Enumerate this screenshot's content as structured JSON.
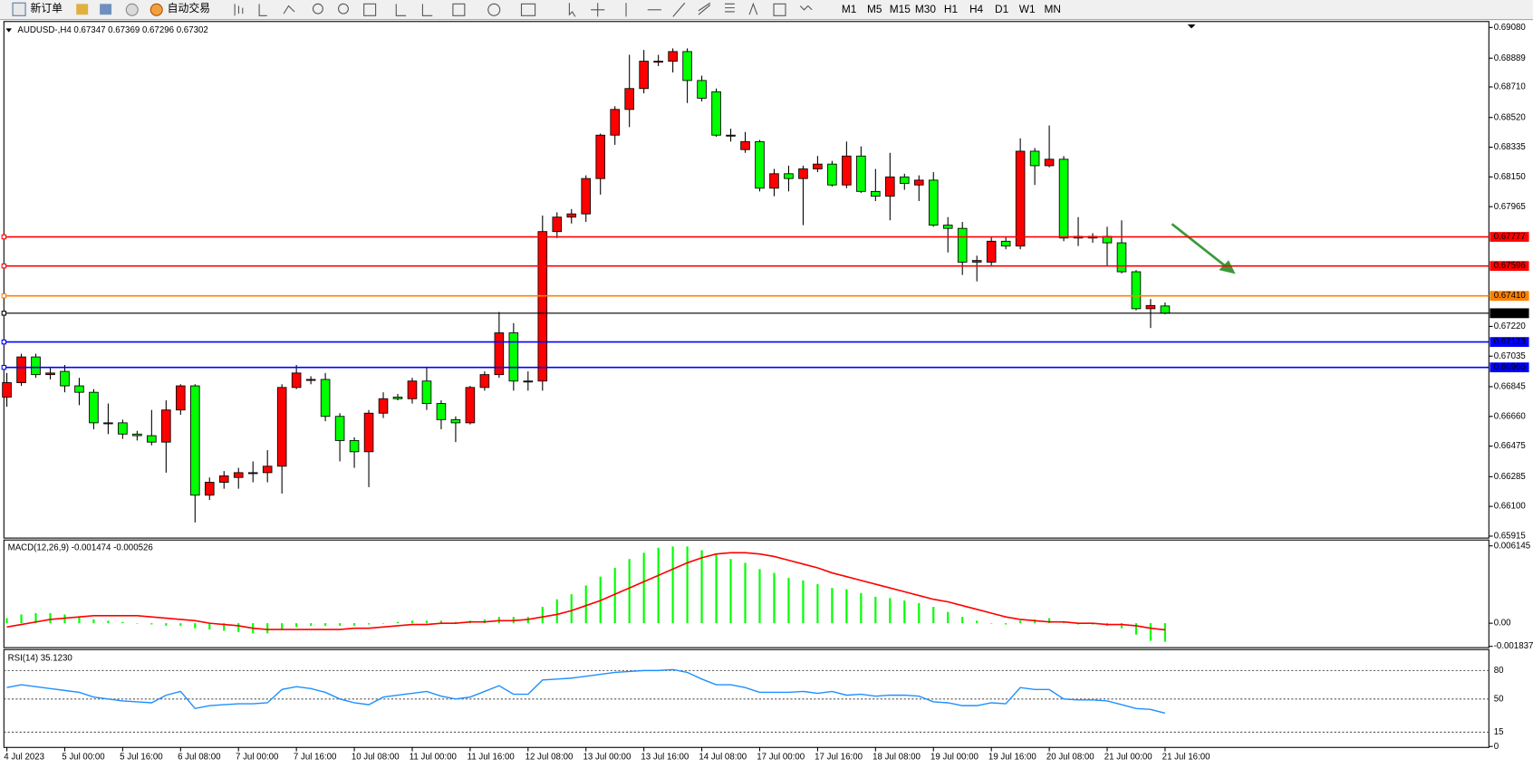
{
  "toolbar": {
    "buttons": [
      "新订单",
      "自动交易"
    ],
    "timeframes": [
      "M1",
      "M5",
      "M15",
      "M30",
      "H1",
      "H4",
      "D1",
      "W1",
      "MN"
    ]
  },
  "chart_data": [
    {
      "type": "candlestick",
      "title": "AUDUSD-,H4  0.67347 0.67369 0.67296 0.67302",
      "up_color": "#ff0000",
      "down_color": "#00ff00",
      "categories": [
        "4 Jul 2023",
        null,
        null,
        null,
        "5 Jul 00:00",
        null,
        null,
        null,
        "5 Jul 16:00",
        null,
        null,
        null,
        "6 Jul 08:00",
        null,
        null,
        null,
        "7 Jul 00:00",
        null,
        null,
        null,
        "7 Jul 16:00",
        null,
        null,
        null,
        "10 Jul 08:00",
        null,
        null,
        null,
        "11 Jul 00:00",
        null,
        null,
        null,
        "11 Jul 16:00",
        null,
        null,
        null,
        "12 Jul 08:00",
        null,
        null,
        null,
        "13 Jul 00:00",
        null,
        null,
        null,
        "13 Jul 16:00",
        null,
        null,
        null,
        "14 Jul 08:00",
        null,
        null,
        null,
        "17 Jul 00:00",
        null,
        null,
        null,
        "17 Jul 16:00",
        null,
        null,
        null,
        "18 Jul 08:00",
        null,
        null,
        null,
        "19 Jul 00:00",
        null,
        null,
        null,
        "19 Jul 16:00",
        null,
        null,
        null,
        "20 Jul 08:00",
        null,
        null,
        null,
        "21 Jul 00:00",
        null,
        null,
        null,
        "21 Jul 16:00"
      ],
      "open": [
        0.6678,
        0.6687,
        0.6703,
        0.6692,
        0.6694,
        0.6685,
        0.6681,
        0.6662,
        0.6662,
        0.6655,
        0.6654,
        0.665,
        0.667,
        0.6685,
        0.6617,
        0.6625,
        0.6628,
        0.6631,
        0.6631,
        0.6635,
        0.6684,
        0.6689,
        0.6689,
        0.6666,
        0.6651,
        0.6644,
        0.6668,
        0.6678,
        0.6677,
        0.6688,
        0.6674,
        0.6664,
        0.6662,
        0.6684,
        0.6692,
        0.6718,
        0.6688,
        0.6688,
        0.6781,
        0.679,
        0.6792,
        0.6814,
        0.6841,
        0.6857,
        0.687,
        0.6887,
        0.6887,
        0.6893,
        0.6875,
        0.6868,
        0.6841,
        0.6832,
        0.6837,
        0.6808,
        0.6817,
        0.6814,
        0.682,
        0.6823,
        0.681,
        0.6828,
        0.6806,
        0.6803,
        0.6815,
        0.681,
        0.6813,
        0.6785,
        0.6783,
        0.6762,
        0.6762,
        0.6775,
        0.6772,
        0.6831,
        0.6822,
        0.6826,
        0.6778,
        0.6778,
        0.6778,
        0.6774,
        0.6756,
        0.6733,
        0.67347
      ],
      "high": [
        0.6693,
        0.6705,
        0.6705,
        0.6696,
        0.6698,
        0.669,
        0.6683,
        0.6674,
        0.6664,
        0.6657,
        0.667,
        0.6676,
        0.6686,
        0.6686,
        0.6628,
        0.6632,
        0.6634,
        0.6638,
        0.6645,
        0.6686,
        0.6698,
        0.6691,
        0.6693,
        0.6668,
        0.6653,
        0.667,
        0.6681,
        0.668,
        0.669,
        0.6696,
        0.6676,
        0.6666,
        0.6685,
        0.6694,
        0.6731,
        0.6724,
        0.6694,
        0.6791,
        0.6793,
        0.6795,
        0.6816,
        0.6842,
        0.6859,
        0.6891,
        0.6894,
        0.6891,
        0.6895,
        0.6895,
        0.6878,
        0.687,
        0.6845,
        0.6843,
        0.6838,
        0.682,
        0.6822,
        0.6822,
        0.6828,
        0.6825,
        0.6837,
        0.6834,
        0.682,
        0.683,
        0.6817,
        0.6816,
        0.6818,
        0.679,
        0.6787,
        0.6766,
        0.6778,
        0.6778,
        0.6839,
        0.6833,
        0.6847,
        0.6828,
        0.679,
        0.678,
        0.6784,
        0.6788,
        0.6757,
        0.6739,
        0.67369
      ],
      "low": [
        0.6672,
        0.6685,
        0.669,
        0.6689,
        0.6681,
        0.6673,
        0.6658,
        0.6655,
        0.6652,
        0.6651,
        0.6648,
        0.6631,
        0.6667,
        0.66,
        0.6614,
        0.6621,
        0.6621,
        0.6625,
        0.6625,
        0.6618,
        0.6683,
        0.6686,
        0.6663,
        0.6638,
        0.6634,
        0.6622,
        0.6665,
        0.6676,
        0.6674,
        0.667,
        0.6658,
        0.665,
        0.6661,
        0.6682,
        0.669,
        0.6682,
        0.6682,
        0.6682,
        0.6777,
        0.6786,
        0.6787,
        0.6804,
        0.6835,
        0.6846,
        0.6867,
        0.6884,
        0.688,
        0.6861,
        0.6862,
        0.684,
        0.6837,
        0.683,
        0.6806,
        0.6803,
        0.6806,
        0.6785,
        0.6818,
        0.6809,
        0.6808,
        0.6805,
        0.68,
        0.6788,
        0.6807,
        0.68,
        0.6784,
        0.6768,
        0.6754,
        0.675,
        0.676,
        0.677,
        0.677,
        0.681,
        0.6821,
        0.6775,
        0.6772,
        0.6774,
        0.676,
        0.6755,
        0.6732,
        0.6721,
        0.67296
      ],
      "close": [
        0.6687,
        0.6703,
        0.6692,
        0.6693,
        0.6685,
        0.6681,
        0.6662,
        0.6662,
        0.6655,
        0.6654,
        0.665,
        0.667,
        0.6685,
        0.6617,
        0.6625,
        0.6629,
        0.6631,
        0.6631,
        0.6635,
        0.6684,
        0.6693,
        0.6689,
        0.6666,
        0.6651,
        0.6644,
        0.6668,
        0.6677,
        0.6677,
        0.6688,
        0.6674,
        0.6664,
        0.6662,
        0.6684,
        0.6692,
        0.6718,
        0.6688,
        0.6688,
        0.6781,
        0.679,
        0.6792,
        0.6814,
        0.6841,
        0.6857,
        0.687,
        0.6887,
        0.6887,
        0.6893,
        0.6875,
        0.6864,
        0.6841,
        0.6841,
        0.6837,
        0.6808,
        0.6817,
        0.6814,
        0.682,
        0.6823,
        0.681,
        0.6828,
        0.6806,
        0.6803,
        0.6815,
        0.6811,
        0.6813,
        0.6785,
        0.6783,
        0.6762,
        0.6763,
        0.6775,
        0.6772,
        0.6831,
        0.6822,
        0.6826,
        0.6777,
        0.6777,
        0.6777,
        0.6774,
        0.6756,
        0.6733,
        0.6735,
        0.67302
      ],
      "ylim": [
        0.65903,
        0.69117
      ],
      "yticks": [
        {
          "value": 0.6908,
          "label": "0.69080"
        },
        0.68889,
        {
          "value": 0.6871,
          "label": "0.68710"
        },
        {
          "value": 0.6852,
          "label": "0.68520"
        },
        0.68335,
        {
          "value": 0.6815,
          "label": "0.68150"
        },
        0.67965,
        {
          "value": 0.6722,
          "label": "0.67220"
        },
        0.67035,
        0.66845,
        {
          "value": 0.6666,
          "label": "0.66660"
        },
        0.66475,
        0.66285,
        {
          "value": 0.661,
          "label": "0.66100"
        },
        0.65915
      ],
      "levels": [
        {
          "value": 0.67777,
          "color": "#ff0000"
        },
        {
          "value": 0.67596,
          "color": "#ff0000"
        },
        {
          "value": 0.6741,
          "label": "0.67410",
          "color": "#ff8000"
        },
        {
          "value": 0.67302,
          "color": "#000000"
        },
        {
          "value": 0.67123,
          "color": "#0000ff"
        },
        {
          "value": 0.66965,
          "color": "#0000ff"
        }
      ]
    },
    {
      "type": "macd",
      "title": "MACD(12,26,9) -0.001474 -0.000526",
      "histogram": {
        "color": "#00ff00",
        "values": [
          0.0004,
          0.0007,
          0.0008,
          0.0008,
          0.0007,
          0.0005,
          0.0003,
          0.0002,
          0.0001,
          0.0,
          -0.0001,
          -0.0002,
          -0.0002,
          -0.0004,
          -0.0005,
          -0.0006,
          -0.0007,
          -0.0008,
          -0.0008,
          -0.0005,
          -0.0003,
          -0.0002,
          -0.0002,
          -0.0002,
          -0.0002,
          -0.0001,
          0.0,
          0.0001,
          0.0002,
          0.0002,
          0.0002,
          0.0001,
          0.0002,
          0.0003,
          0.0005,
          0.0005,
          0.0005,
          0.0013,
          0.0019,
          0.0023,
          0.003,
          0.0037,
          0.0044,
          0.0051,
          0.0056,
          0.006,
          0.0061,
          0.0061,
          0.0058,
          0.0055,
          0.0051,
          0.0048,
          0.0043,
          0.004,
          0.0036,
          0.0034,
          0.0031,
          0.0028,
          0.0027,
          0.0024,
          0.0021,
          0.002,
          0.0018,
          0.0016,
          0.0013,
          0.0009,
          0.0005,
          0.0002,
          0.0,
          -0.0001,
          0.0002,
          0.0003,
          0.0004,
          0.0001,
          -0.0001,
          -0.0001,
          -0.0002,
          -0.0004,
          -0.0009,
          -0.0014,
          -0.001474
        ]
      },
      "signal": {
        "color": "#ff0000",
        "values": [
          -0.0003,
          -0.0001,
          0.0001,
          0.0003,
          0.0004,
          0.0005,
          0.0006,
          0.0006,
          0.0006,
          0.0006,
          0.0005,
          0.0004,
          0.0003,
          0.0002,
          0.0,
          -0.0001,
          -0.0002,
          -0.0004,
          -0.0005,
          -0.0005,
          -0.0005,
          -0.0005,
          -0.0005,
          -0.0005,
          -0.0004,
          -0.0004,
          -0.0003,
          -0.0002,
          -0.0001,
          -0.0001,
          0.0,
          0.0,
          0.0001,
          0.0001,
          0.0002,
          0.0002,
          0.0003,
          0.0005,
          0.0007,
          0.001,
          0.0014,
          0.0018,
          0.0023,
          0.0028,
          0.0033,
          0.0038,
          0.0043,
          0.0048,
          0.0052,
          0.0055,
          0.0056,
          0.0056,
          0.0055,
          0.0053,
          0.005,
          0.0047,
          0.0044,
          0.004,
          0.0037,
          0.0034,
          0.0031,
          0.0028,
          0.0025,
          0.0022,
          0.0019,
          0.0017,
          0.0014,
          0.0011,
          0.0008,
          0.0005,
          0.0003,
          0.0002,
          0.0001,
          0.0001,
          0.0,
          0.0,
          -0.0001,
          -0.0001,
          -0.0002,
          -0.0004,
          -0.000526
        ]
      },
      "ylim": [
        -0.00194,
        0.00661
      ],
      "yticks": [
        0.006145,
        {
          "value": 0,
          "label": "0.00"
        },
        -0.001837
      ]
    },
    {
      "type": "rsi",
      "title": "RSI(14) 35.1230",
      "color": "#1e90ff",
      "values": [
        62,
        65,
        63,
        61,
        59,
        57,
        52,
        50,
        48,
        47,
        46,
        54,
        58,
        40,
        43,
        44,
        45,
        45,
        46,
        60,
        63,
        61,
        57,
        50,
        46,
        44,
        52,
        54,
        56,
        58,
        53,
        50,
        52,
        58,
        64,
        55,
        55,
        70,
        71,
        72,
        74,
        76,
        78,
        79,
        80,
        80,
        81,
        78,
        71,
        65,
        65,
        62,
        57,
        57,
        57,
        58,
        56,
        58,
        54,
        55,
        53,
        54,
        54,
        53,
        47,
        46,
        43,
        43,
        46,
        45,
        62,
        60,
        60,
        50,
        49,
        49,
        48,
        44,
        40,
        39,
        35.123
      ],
      "ylim": [
        0,
        100
      ],
      "yticks": [
        80,
        50,
        15,
        0
      ],
      "grid": "dashed"
    }
  ]
}
